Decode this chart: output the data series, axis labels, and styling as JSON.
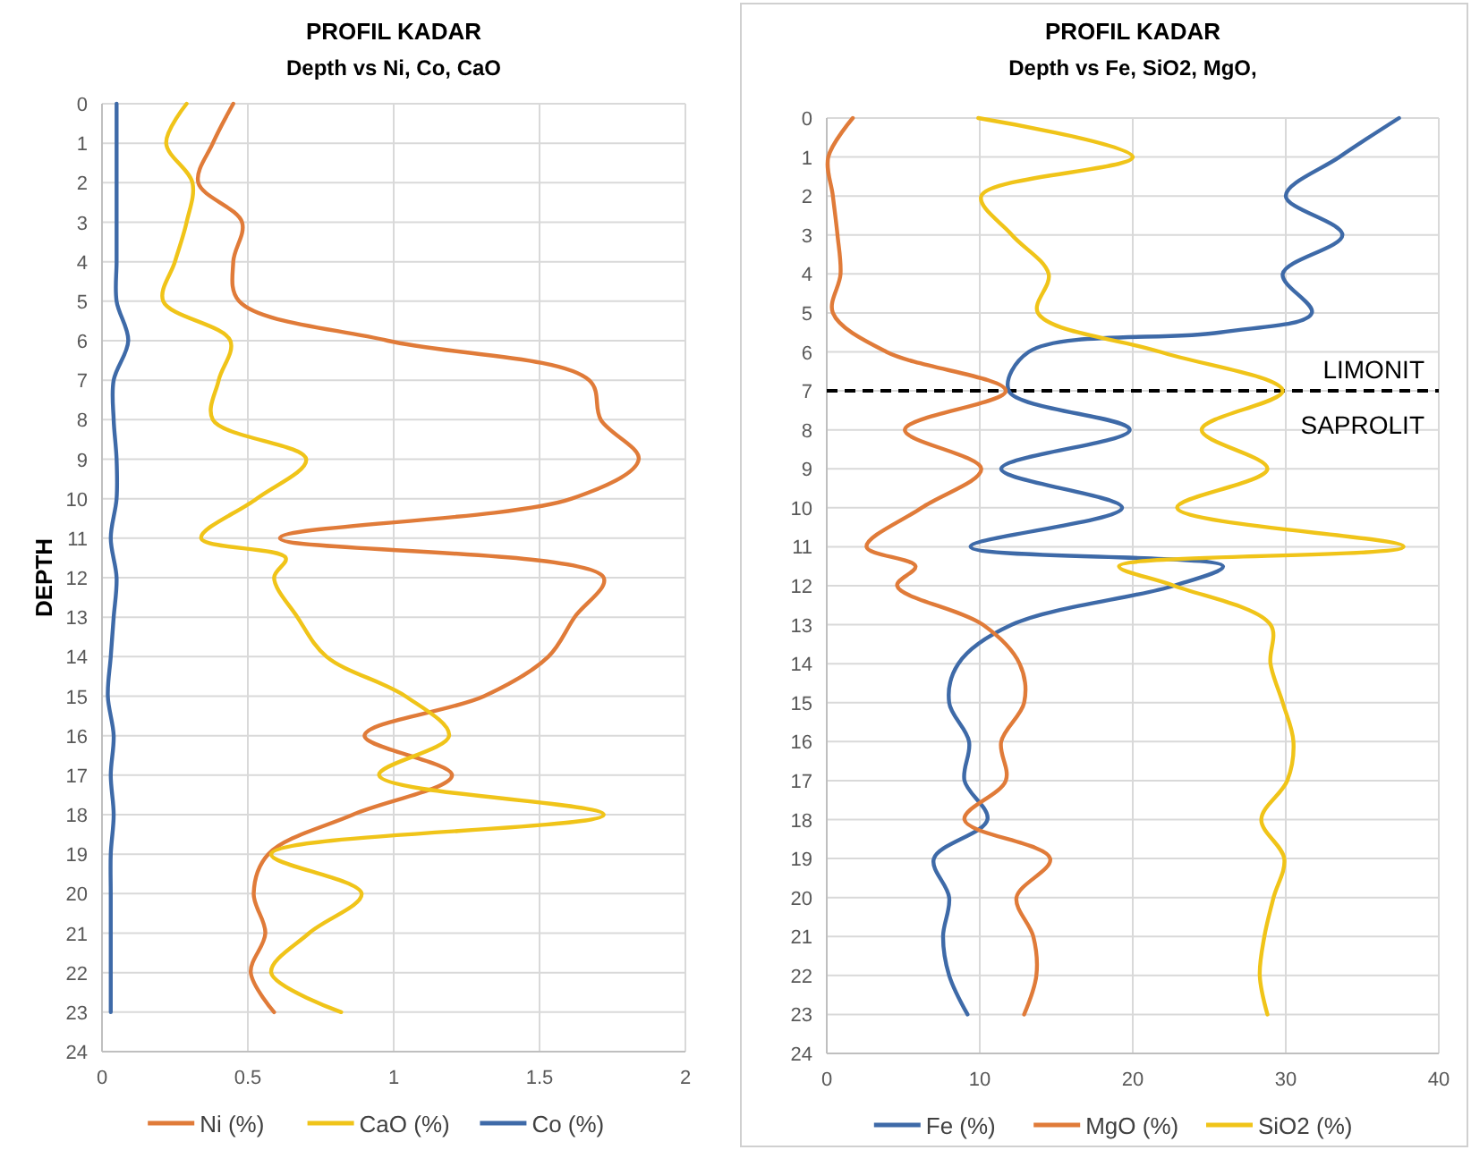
{
  "chart_data": [
    {
      "type": "line",
      "title": "PROFIL KADAR",
      "subtitle": "Depth vs Ni, Co, CaO",
      "ylabel": "DEPTH",
      "xlim": [
        0,
        2
      ],
      "xticks": [
        0,
        0.5,
        1,
        1.5,
        2
      ],
      "ylim": [
        24,
        0
      ],
      "yticks": [
        0,
        1,
        2,
        3,
        4,
        5,
        6,
        7,
        8,
        9,
        10,
        11,
        12,
        13,
        14,
        15,
        16,
        17,
        18,
        19,
        20,
        21,
        22,
        23,
        24
      ],
      "grid": true,
      "legend": "bottom",
      "line_style": "solid",
      "series": [
        {
          "name": "Ni (%)",
          "color": "#e07b39",
          "x": [
            0.45,
            0.38,
            0.33,
            0.48,
            0.45,
            0.47,
            0.98,
            1.67,
            1.71,
            1.84,
            1.61,
            0.61,
            1.72,
            1.62,
            1.53,
            1.31,
            0.9,
            1.2,
            0.86,
            0.57,
            0.52,
            0.56,
            0.51,
            0.59
          ],
          "values": [
            0,
            1,
            2,
            3,
            4,
            5,
            6,
            7,
            8,
            9,
            10,
            11,
            12,
            13,
            14,
            15,
            16,
            17,
            18,
            19,
            20,
            21,
            22,
            23
          ]
        },
        {
          "name": "CaO (%)",
          "color": "#f0c419",
          "x": [
            0.29,
            0.22,
            0.31,
            0.29,
            0.25,
            0.21,
            0.44,
            0.4,
            0.38,
            0.7,
            0.53,
            0.34,
            0.63,
            0.59,
            0.67,
            0.77,
            1.04,
            1.19,
            0.95,
            1.72,
            0.58,
            0.89,
            0.71,
            0.58,
            0.82
          ],
          "values": [
            0,
            1,
            2,
            3,
            4,
            5,
            6,
            7,
            8,
            9,
            10,
            11,
            11.5,
            12,
            13,
            14,
            15,
            16,
            17,
            18,
            19,
            20,
            21,
            22,
            23
          ]
        },
        {
          "name": "Co (%)",
          "color": "#3e6aa8",
          "x": [
            0.05,
            0.05,
            0.05,
            0.05,
            0.05,
            0.05,
            0.09,
            0.04,
            0.04,
            0.05,
            0.05,
            0.03,
            0.05,
            0.04,
            0.03,
            0.02,
            0.04,
            0.03,
            0.04,
            0.03,
            0.03,
            0.03,
            0.03,
            0.03
          ],
          "values": [
            0,
            1,
            2,
            3,
            4,
            5,
            6,
            7,
            8,
            9,
            10,
            11,
            12,
            13,
            14,
            15,
            16,
            17,
            18,
            19,
            20,
            21,
            22,
            23
          ]
        }
      ]
    },
    {
      "type": "line",
      "title": "PROFIL KADAR",
      "subtitle": "Depth vs Fe, SiO2, MgO,",
      "xlim": [
        0,
        40
      ],
      "xticks": [
        0,
        10,
        20,
        30,
        40
      ],
      "ylim": [
        24,
        0
      ],
      "yticks": [
        0,
        1,
        2,
        3,
        4,
        5,
        6,
        7,
        8,
        9,
        10,
        11,
        12,
        13,
        14,
        15,
        16,
        17,
        18,
        19,
        20,
        21,
        22,
        23,
        24
      ],
      "grid": true,
      "legend": "bottom",
      "line_style": "solid",
      "ref_lines": [
        {
          "axis": "y",
          "value": 7,
          "label": "LIMONIT",
          "color": "#000000",
          "line_style": "dashed"
        }
      ],
      "annotations": [
        "SAPROLIT"
      ],
      "series": [
        {
          "name": "Fe (%)",
          "color": "#3e6aa8",
          "x": [
            37.4,
            33.5,
            30.0,
            33.7,
            29.8,
            31.7,
            25.7,
            13.2,
            11.9,
            19.8,
            11.4,
            19.3,
            9.4,
            25.9,
            22.7,
            12.1,
            8.6,
            8.0,
            9.3,
            9.0,
            10.5,
            7.0,
            8.0,
            7.6,
            8.0,
            9.2
          ],
          "values": [
            0,
            1,
            2,
            3,
            4,
            5,
            5.5,
            6,
            7,
            8,
            9,
            10,
            11,
            11.5,
            12,
            13,
            14,
            15,
            16,
            17,
            18,
            19,
            20,
            21,
            22,
            23
          ]
        },
        {
          "name": "MgO (%)",
          "color": "#e07b39",
          "x": [
            1.7,
            0.1,
            0.4,
            0.7,
            0.9,
            0.4,
            3.9,
            11.7,
            5.1,
            10.1,
            6.2,
            2.6,
            5.8,
            4.6,
            10.2,
            12.6,
            12.9,
            11.4,
            11.7,
            9.0,
            14.6,
            12.4,
            13.5,
            13.7,
            12.9
          ],
          "values": [
            0,
            1,
            2,
            3,
            4,
            5,
            6,
            7,
            8,
            9,
            10,
            11,
            11.5,
            12,
            13,
            14,
            15,
            16,
            17,
            18,
            19,
            20,
            21,
            22,
            23
          ]
        },
        {
          "name": "SiO2 (%)",
          "color": "#f0c419",
          "x": [
            9.9,
            20.0,
            10.1,
            12.1,
            14.5,
            13.8,
            21.8,
            29.8,
            24.5,
            28.8,
            22.9,
            37.7,
            19.1,
            22.7,
            29.0,
            29.0,
            29.8,
            30.5,
            30.1,
            28.4,
            29.9,
            29.2,
            28.6,
            28.3,
            28.8
          ],
          "values": [
            0,
            1,
            2,
            3,
            4,
            5,
            6,
            7,
            8,
            9,
            10,
            11,
            11.5,
            12,
            13,
            14,
            15,
            16,
            17,
            18,
            19,
            20,
            21,
            22,
            23
          ]
        }
      ]
    }
  ]
}
